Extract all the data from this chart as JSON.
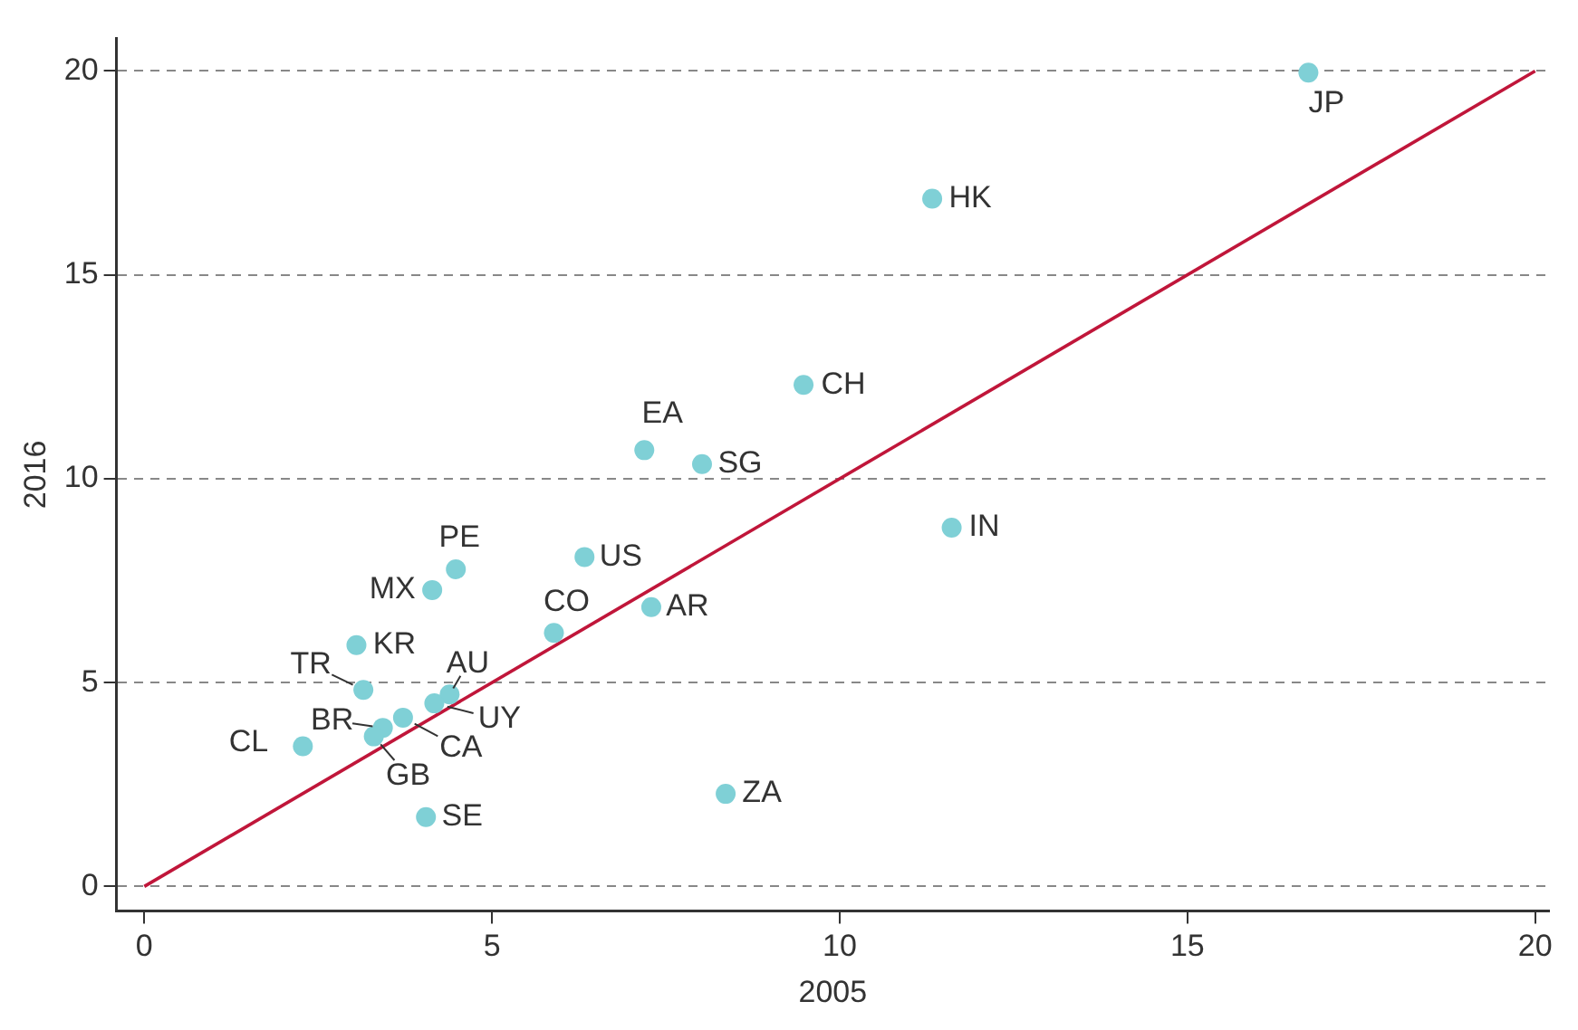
{
  "chart_data": {
    "type": "scatter",
    "xlabel": "2005",
    "ylabel": "2016",
    "xlim": [
      -0.4,
      20.2
    ],
    "ylim": [
      -0.6,
      20.8
    ],
    "xticks": [
      0,
      5,
      10,
      15,
      20
    ],
    "yticks": [
      0,
      5,
      10,
      15,
      20
    ],
    "grid": "y",
    "legend": false,
    "marker": "circle",
    "series": [
      {
        "color": "#7fd0d6",
        "x": [
          16.74,
          11.33,
          9.48,
          7.19,
          8.02,
          11.61,
          6.33,
          4.48,
          4.14,
          7.29,
          5.89,
          3.05,
          3.15,
          4.39,
          4.17,
          3.72,
          3.43,
          3.3,
          2.28,
          4.05,
          8.36
        ],
        "values": [
          19.96,
          16.87,
          12.3,
          10.7,
          10.36,
          8.8,
          8.08,
          7.78,
          7.27,
          6.85,
          6.22,
          5.92,
          4.82,
          4.71,
          4.49,
          4.14,
          3.89,
          3.68,
          3.44,
          1.7,
          2.27
        ]
      },
      {
        "type": "line",
        "color": "#c0163a",
        "x": [
          0,
          20
        ],
        "values": [
          0,
          20
        ],
        "marker": "none",
        "line_style": "solid"
      }
    ],
    "annotations": [
      {
        "text": "JP",
        "x": 16.74,
        "y": 19.96
      },
      {
        "text": "HK",
        "x": 11.33,
        "y": 16.87
      },
      {
        "text": "CH",
        "x": 9.48,
        "y": 12.3
      },
      {
        "text": "EA",
        "x": 7.19,
        "y": 10.7
      },
      {
        "text": "SG",
        "x": 8.02,
        "y": 10.36
      },
      {
        "text": "IN",
        "x": 11.61,
        "y": 8.8
      },
      {
        "text": "US",
        "x": 6.33,
        "y": 8.08
      },
      {
        "text": "PE",
        "x": 4.48,
        "y": 7.78
      },
      {
        "text": "MX",
        "x": 4.14,
        "y": 7.27
      },
      {
        "text": "AR",
        "x": 7.29,
        "y": 6.85
      },
      {
        "text": "CO",
        "x": 5.89,
        "y": 6.22
      },
      {
        "text": "KR",
        "x": 3.05,
        "y": 5.92
      },
      {
        "text": "TR",
        "x": 3.15,
        "y": 4.82
      },
      {
        "text": "AU",
        "x": 4.39,
        "y": 4.71
      },
      {
        "text": "UY",
        "x": 4.17,
        "y": 4.49
      },
      {
        "text": "CA",
        "x": 3.72,
        "y": 4.14
      },
      {
        "text": "BR",
        "x": 3.43,
        "y": 3.89
      },
      {
        "text": "GB",
        "x": 3.3,
        "y": 3.68
      },
      {
        "text": "CL",
        "x": 2.28,
        "y": 3.44
      },
      {
        "text": "SE",
        "x": 4.05,
        "y": 1.7
      },
      {
        "text": "ZA",
        "x": 8.36,
        "y": 2.27
      }
    ]
  }
}
